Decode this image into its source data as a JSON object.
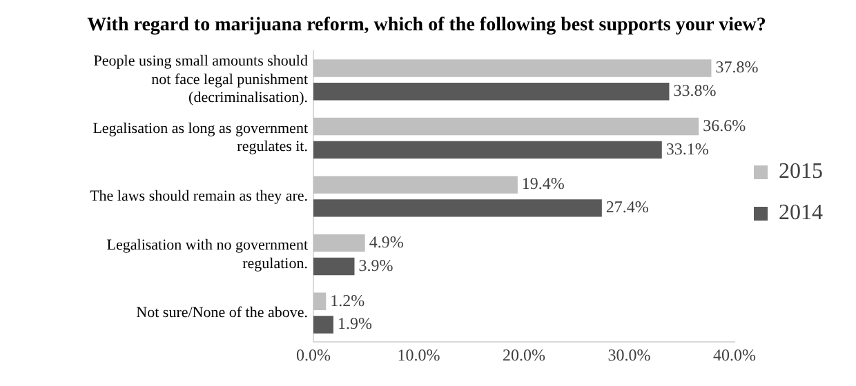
{
  "chart_data": {
    "type": "bar",
    "orientation": "horizontal",
    "title": "With regard to marijuana reform, which of the following best supports your view?",
    "categories": [
      "People using small amounts should not face legal punishment (decriminalisation).",
      "Legalisation as long as government regulates it.",
      "The laws should remain as they are.",
      "Legalisation with no government regulation.",
      "Not sure/None of the above."
    ],
    "series": [
      {
        "name": "2015",
        "color": "#bfbfbf",
        "values": [
          37.8,
          36.6,
          19.4,
          4.9,
          1.2
        ],
        "value_labels": [
          "37.8%",
          "36.6%",
          "19.4%",
          "4.9%",
          "1.2%"
        ]
      },
      {
        "name": "2014",
        "color": "#595959",
        "values": [
          33.8,
          33.1,
          27.4,
          3.9,
          1.9
        ],
        "value_labels": [
          "33.8%",
          "33.1%",
          "27.4%",
          "3.9%",
          "1.9%"
        ]
      }
    ],
    "xlim": [
      0,
      40
    ],
    "xticks": [
      {
        "value": 0,
        "label": "0.0%"
      },
      {
        "value": 10,
        "label": "10.0%"
      },
      {
        "value": 20,
        "label": "20.0%"
      },
      {
        "value": 30,
        "label": "30.0%"
      },
      {
        "value": 40,
        "label": "40.0%"
      }
    ],
    "grid": false,
    "legend": "right"
  }
}
